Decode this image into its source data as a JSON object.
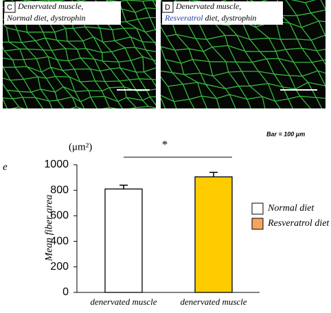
{
  "panels": [
    {
      "letter": "C",
      "line1": "Denervated muscle,",
      "line2": "Normal diet, dystrophin"
    },
    {
      "letter": "D",
      "line1": "Denervated muscle,",
      "line2_highlight": "Resveratrol",
      "line2_rest": "diet, dystrophin"
    }
  ],
  "scale_note": "Bar  =  100 μm",
  "chart_data": {
    "type": "bar",
    "panel_letter": "e",
    "unit_label": "(μm²)",
    "ylabel": "Mean fiber area",
    "significance": "*",
    "categories": [
      "denervated muscle",
      "denervated muscle"
    ],
    "values": [
      810,
      905
    ],
    "errors": [
      30,
      35
    ],
    "colors": [
      "#ffffff",
      "#ffcc00"
    ],
    "legend": [
      "Normal diet",
      "Resveratrol diet"
    ],
    "legend_colors": [
      "#ffffff",
      "#f4a460"
    ],
    "ylim": [
      0,
      1000
    ],
    "yticks": [
      0,
      200,
      400,
      600,
      800,
      1000
    ]
  }
}
